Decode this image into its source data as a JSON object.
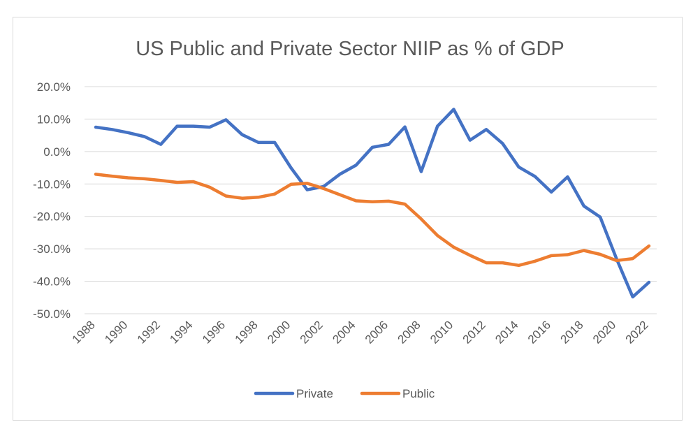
{
  "chart_data": {
    "type": "line",
    "title": "US Public and Private Sector NIIP as % of GDP",
    "xlabel": "",
    "ylabel": "",
    "x": [
      1988,
      1989,
      1990,
      1991,
      1992,
      1993,
      1994,
      1995,
      1996,
      1997,
      1998,
      1999,
      2000,
      2001,
      2002,
      2003,
      2004,
      2005,
      2006,
      2007,
      2008,
      2009,
      2010,
      2011,
      2012,
      2013,
      2014,
      2015,
      2016,
      2017,
      2018,
      2019,
      2020,
      2021,
      2022
    ],
    "xticks": [
      "1988",
      "1990",
      "1992",
      "1994",
      "1996",
      "1998",
      "2000",
      "2002",
      "2004",
      "2006",
      "2008",
      "2010",
      "2012",
      "2014",
      "2016",
      "2018",
      "2020",
      "2022"
    ],
    "ylim": [
      -50,
      20
    ],
    "yticks": [
      "20.0%",
      "10.0%",
      "0.0%",
      "-10.0%",
      "-20.0%",
      "-30.0%",
      "-40.0%",
      "-50.0%"
    ],
    "grid": true,
    "legend_position": "bottom",
    "series": [
      {
        "name": "Private",
        "color": "#4472C4",
        "values": [
          7.5,
          6.8,
          5.8,
          4.6,
          2.2,
          7.8,
          7.8,
          7.5,
          9.8,
          5.2,
          2.8,
          2.8,
          -5.0,
          -11.8,
          -10.8,
          -7.0,
          -4.2,
          1.3,
          2.2,
          7.6,
          -6.2,
          7.8,
          13.0,
          3.5,
          6.8,
          2.5,
          -4.8,
          -7.7,
          -12.5,
          -7.8,
          -16.8,
          -20.2,
          -33.0,
          -44.8,
          -40.3
        ]
      },
      {
        "name": "Public",
        "color": "#ED7D31",
        "values": [
          -7.0,
          -7.6,
          -8.1,
          -8.4,
          -8.9,
          -9.5,
          -9.3,
          -11.0,
          -13.7,
          -14.4,
          -14.1,
          -13.1,
          -10.1,
          -9.8,
          -11.4,
          -13.3,
          -15.2,
          -15.5,
          -15.3,
          -16.2,
          -20.8,
          -25.9,
          -29.5,
          -32.0,
          -34.3,
          -34.3,
          -35.1,
          -33.8,
          -32.1,
          -31.8,
          -30.5,
          -31.7,
          -33.6,
          -33.0,
          -29.1
        ]
      }
    ]
  }
}
